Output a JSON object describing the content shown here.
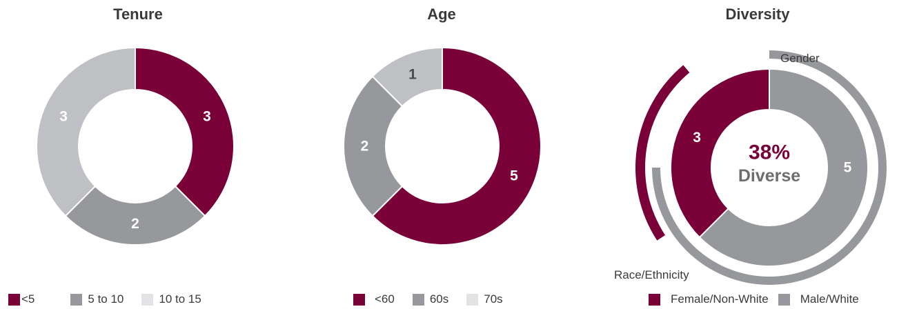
{
  "colors": {
    "maroon": "#7a0038",
    "gray": "#97989c",
    "light_gray": "#bfc0c4",
    "very_light_gray": "#e3e3e6"
  },
  "chart_data": [
    {
      "type": "pie",
      "title": "Tenure",
      "categories": [
        "<5",
        "5 to 10",
        "10 to 15"
      ],
      "values": [
        3,
        2,
        3
      ]
    },
    {
      "type": "pie",
      "title": "Age",
      "categories": [
        "<60",
        "60s",
        "70s"
      ],
      "values": [
        5,
        2,
        1
      ]
    },
    {
      "type": "pie",
      "title": "Diversity",
      "categories": [
        "Female/Non-White",
        "Male/White"
      ],
      "values": [
        3,
        5
      ],
      "center_value": "38%",
      "center_label": "Diverse",
      "outer_arcs": [
        {
          "label": "Gender",
          "fraction": 0.75
        },
        {
          "label": "Race/Ethnicity",
          "fraction": 0.25
        }
      ]
    }
  ]
}
